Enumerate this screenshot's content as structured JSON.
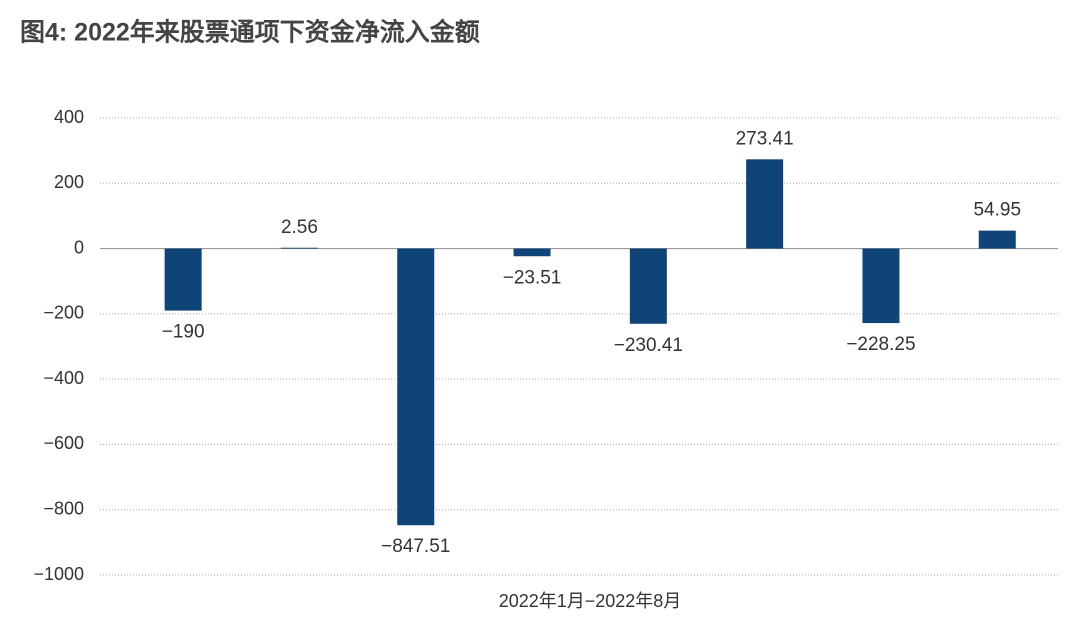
{
  "chart_data": {
    "type": "bar",
    "title": "图4: 2022年来股票通项下资金净流入金额",
    "x_label": "2022年1月−2022年8月",
    "categories": [
      null,
      null,
      null,
      null,
      null,
      null,
      null,
      null
    ],
    "values": [
      -190,
      2.56,
      -847.51,
      -23.51,
      -230.41,
      273.41,
      -228.25,
      54.95
    ],
    "value_labels": [
      "−190",
      "2.56",
      "−847.51",
      "−23.51",
      "−230.41",
      "273.41",
      "−228.25",
      "54.95"
    ],
    "color": "#0e4478",
    "ylim": [
      -1000,
      400
    ],
    "yticks": [
      400,
      200,
      0,
      {
        "value": -200,
        "label": "−200"
      },
      {
        "value": -400,
        "label": "−400"
      },
      {
        "value": -600,
        "label": "−600"
      },
      {
        "value": -800,
        "label": "−800"
      },
      {
        "value": -1000,
        "label": "−1000"
      }
    ],
    "grid": true
  }
}
